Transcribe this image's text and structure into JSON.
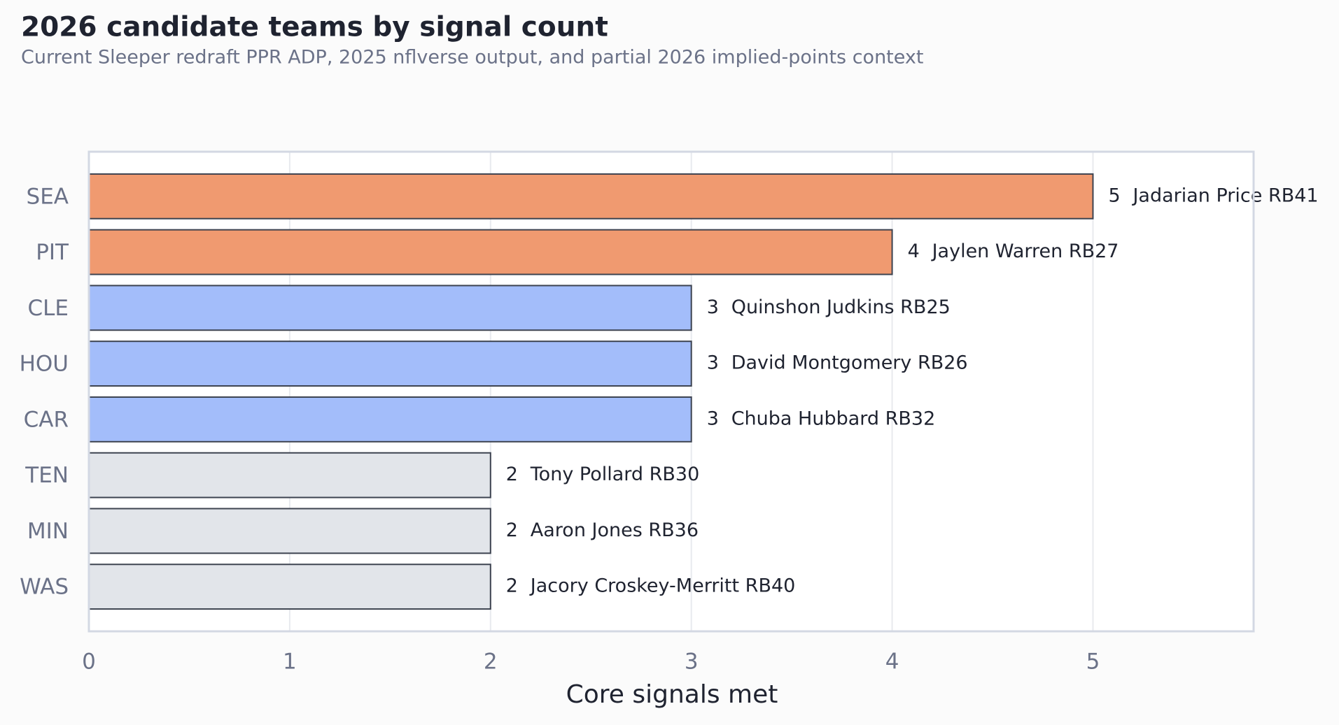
{
  "chart_data": {
    "type": "bar",
    "orientation": "horizontal",
    "title": "2026 candidate teams by signal count",
    "subtitle": "Current Sleeper redraft PPR ADP, 2025 nflverse output, and partial 2026 implied-points context",
    "x_label": "Core signals met",
    "categories": [
      "SEA",
      "PIT",
      "CLE",
      "HOU",
      "CAR",
      "TEN",
      "MIN",
      "WAS"
    ],
    "values": [
      5,
      4,
      3,
      3,
      3,
      2,
      2,
      2
    ],
    "players": [
      "Jadarian Price RB41",
      "Jaylen Warren RB27",
      "Quinshon Judkins RB25",
      "David Montgomery RB26",
      "Chuba Hubbard RB32",
      "Tony Pollard RB30",
      "Aaron Jones RB36",
      "Jacory Croskey-Merritt RB40"
    ],
    "colors": [
      "#f09a70",
      "#f09a70",
      "#a3bdfa",
      "#a3bdfa",
      "#a3bdfa",
      "#e2e5ea",
      "#e2e5ea",
      "#e2e5ea"
    ],
    "xlim": [
      0,
      5.8
    ],
    "xticks": [
      0,
      1,
      2,
      3,
      4,
      5
    ],
    "grid": true
  }
}
